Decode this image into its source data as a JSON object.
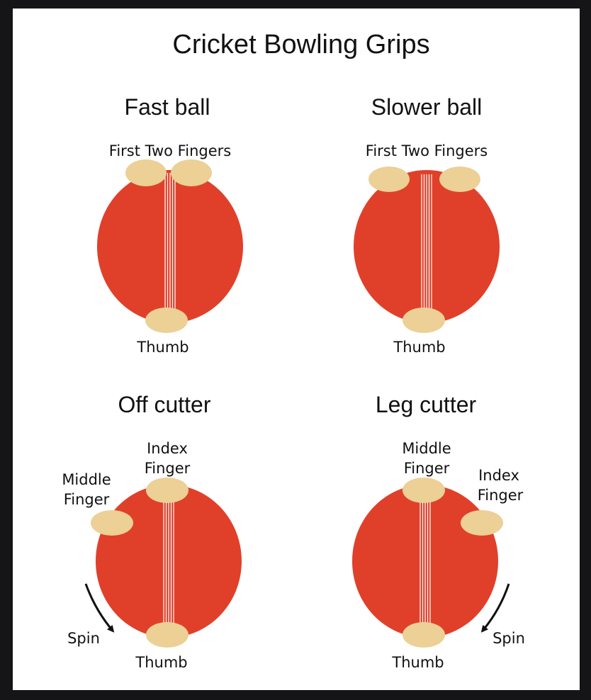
{
  "title": "Cricket Bowling Grips",
  "colors": {
    "ball": "#e0402a",
    "seam_line": "#ffffff",
    "finger": "#ecd096",
    "arrow": "#111111",
    "text": "#111111"
  },
  "grips": [
    {
      "name": "Fast ball",
      "labels": [
        "First Two Fingers",
        "Thumb"
      ]
    },
    {
      "name": "Slower ball",
      "labels": [
        "First Two Fingers",
        "Thumb"
      ]
    },
    {
      "name": "Off cutter",
      "labels": [
        "Index",
        "Finger",
        "Middle",
        "Finger",
        "Thumb"
      ],
      "spin_label": "Spin"
    },
    {
      "name": "Leg cutter",
      "labels": [
        "Middle",
        "Finger",
        "Index",
        "Finger",
        "Thumb"
      ],
      "spin_label": "Spin"
    }
  ]
}
